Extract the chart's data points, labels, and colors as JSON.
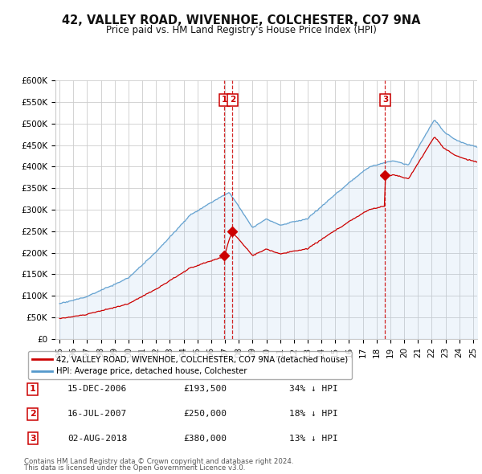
{
  "title": "42, VALLEY ROAD, WIVENHOE, COLCHESTER, CO7 9NA",
  "subtitle": "Price paid vs. HM Land Registry's House Price Index (HPI)",
  "ylim": [
    0,
    600000
  ],
  "yticks": [
    0,
    50000,
    100000,
    150000,
    200000,
    250000,
    300000,
    350000,
    400000,
    450000,
    500000,
    550000,
    600000
  ],
  "ytick_labels": [
    "£0",
    "£50K",
    "£100K",
    "£150K",
    "£200K",
    "£250K",
    "£300K",
    "£350K",
    "£400K",
    "£450K",
    "£500K",
    "£550K",
    "£600K"
  ],
  "sale_color": "#cc0000",
  "hpi_color": "#5599cc",
  "hpi_fill_color": "#aaccee",
  "sale_dates": [
    "15-DEC-2006",
    "16-JUL-2007",
    "02-AUG-2018"
  ],
  "sale_prices": [
    193500,
    250000,
    380000
  ],
  "sale_labels": [
    "1",
    "2",
    "3"
  ],
  "transaction_table": [
    [
      "1",
      "15-DEC-2006",
      "£193,500",
      "34% ↓ HPI"
    ],
    [
      "2",
      "16-JUL-2007",
      "£250,000",
      "18% ↓ HPI"
    ],
    [
      "3",
      "02-AUG-2018",
      "£380,000",
      "13% ↓ HPI"
    ]
  ],
  "legend1": "42, VALLEY ROAD, WIVENHOE, COLCHESTER, CO7 9NA (detached house)",
  "legend2": "HPI: Average price, detached house, Colchester",
  "footnote1": "Contains HM Land Registry data © Crown copyright and database right 2024.",
  "footnote2": "This data is licensed under the Open Government Licence v3.0.",
  "background_color": "#ffffff",
  "grid_color": "#cccccc",
  "vline_color": "#cc0000",
  "marker_box_color": "#cc0000",
  "xlim_start": 1995,
  "xlim_end": 2025
}
